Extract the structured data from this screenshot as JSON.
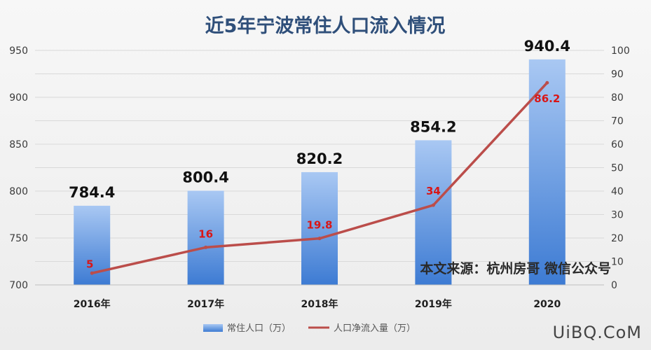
{
  "chart_data": {
    "type": "bar+line",
    "title": "近5年宁波常住人口流入情况",
    "categories": [
      "2016年",
      "2017年",
      "2018年",
      "2019年",
      "2020"
    ],
    "series": [
      {
        "name": "常住人口（万）",
        "type": "bar",
        "axis": "left",
        "values": [
          784.4,
          800.4,
          820.2,
          854.2,
          940.4
        ],
        "labels": [
          "784.4",
          "800.4",
          "820.2",
          "854.2",
          "940.4"
        ],
        "color": "#5b93dd"
      },
      {
        "name": "人口净流入量（万）",
        "type": "line",
        "axis": "right",
        "values": [
          5,
          16,
          19.8,
          34,
          86.2
        ],
        "labels": [
          "5",
          "16",
          "19.8",
          "34",
          "86.2"
        ],
        "color": "#bb4d4a"
      }
    ],
    "y_left": {
      "min": 700,
      "max": 950,
      "ticks": [
        "700",
        "750",
        "800",
        "850",
        "900",
        "950"
      ]
    },
    "y_right": {
      "min": 0,
      "max": 100,
      "ticks": [
        "0",
        "10",
        "20",
        "30",
        "40",
        "50",
        "60",
        "70",
        "80",
        "90",
        "100"
      ]
    },
    "grid": true,
    "legend_position": "bottom"
  },
  "source_note": "本文来源：杭州房哥 微信公众号",
  "watermark": "UiBQ.CoM"
}
